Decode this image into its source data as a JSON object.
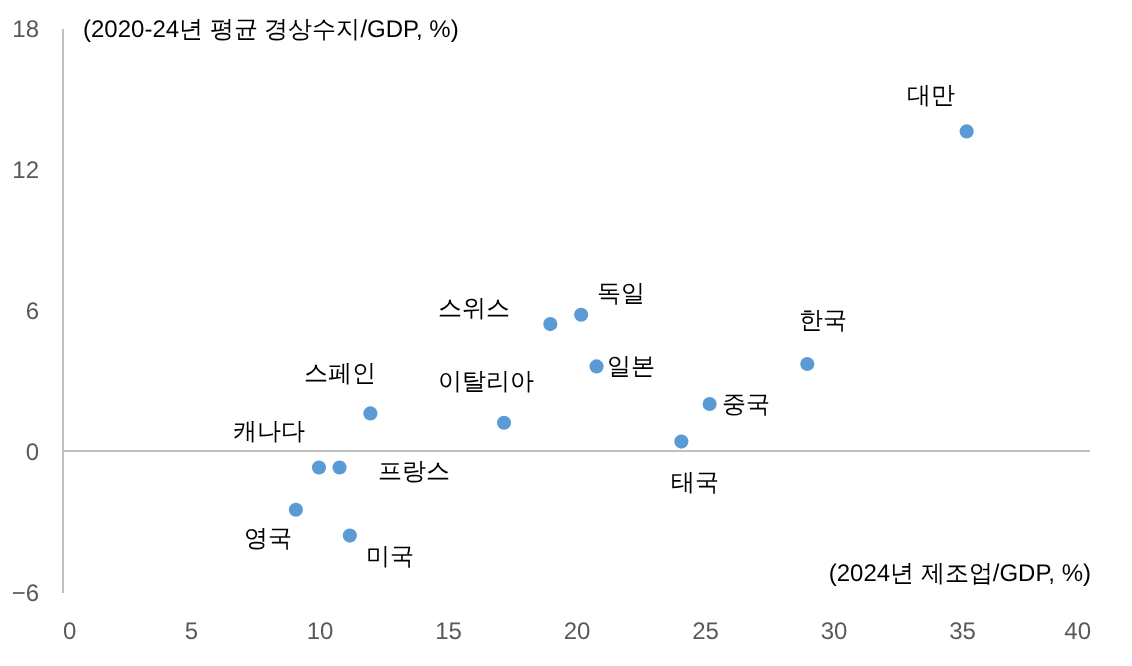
{
  "chart_data": {
    "type": "scatter",
    "xlabel": "(2024년 제조업/GDP, %)",
    "ylabel": "(2020-24년 평균 경상수지/GDP, %)",
    "x": [
      35.2,
      29.0,
      25.2,
      24.1,
      19.0,
      20.2,
      20.8,
      12.0,
      17.2,
      10.0,
      10.8,
      9.1,
      11.2
    ],
    "series": [
      {
        "color": "#5b9bd5",
        "values": [
          13.6,
          3.7,
          2.0,
          0.4,
          5.4,
          5.8,
          3.6,
          1.6,
          1.2,
          -0.7,
          -0.7,
          -2.5,
          -3.6
        ]
      }
    ],
    "xlim": [
      0,
      40
    ],
    "xticks": [
      0,
      5,
      10,
      15,
      20,
      25,
      30,
      35,
      40
    ],
    "ylim": [
      -6,
      18
    ],
    "yticks": [
      -6,
      0,
      6,
      12,
      18
    ],
    "ref_lines": [
      {
        "axis": "y",
        "value": 0,
        "color": "#bfbfbf"
      }
    ],
    "marker": "circle",
    "grid": false,
    "annotations": [
      {
        "text": "대만",
        "x": 35.2,
        "y": 13.6
      },
      {
        "text": "한국",
        "x": 29.0,
        "y": 3.7
      },
      {
        "text": "중국",
        "x": 25.2,
        "y": 2.0
      },
      {
        "text": "태국",
        "x": 24.1,
        "y": 0.4
      },
      {
        "text": "스위스",
        "x": 19.0,
        "y": 5.4
      },
      {
        "text": "독일",
        "x": 20.2,
        "y": 5.8
      },
      {
        "text": "일본",
        "x": 20.8,
        "y": 3.6
      },
      {
        "text": "스페인",
        "x": 12.0,
        "y": 1.6
      },
      {
        "text": "이탈리아",
        "x": 17.2,
        "y": 1.2
      },
      {
        "text": "캐나다",
        "x": 10.0,
        "y": -0.7
      },
      {
        "text": "프랑스",
        "x": 10.8,
        "y": -0.7
      },
      {
        "text": "영국",
        "x": 9.1,
        "y": -2.5
      },
      {
        "text": "미국",
        "x": 11.2,
        "y": -3.6
      }
    ]
  }
}
